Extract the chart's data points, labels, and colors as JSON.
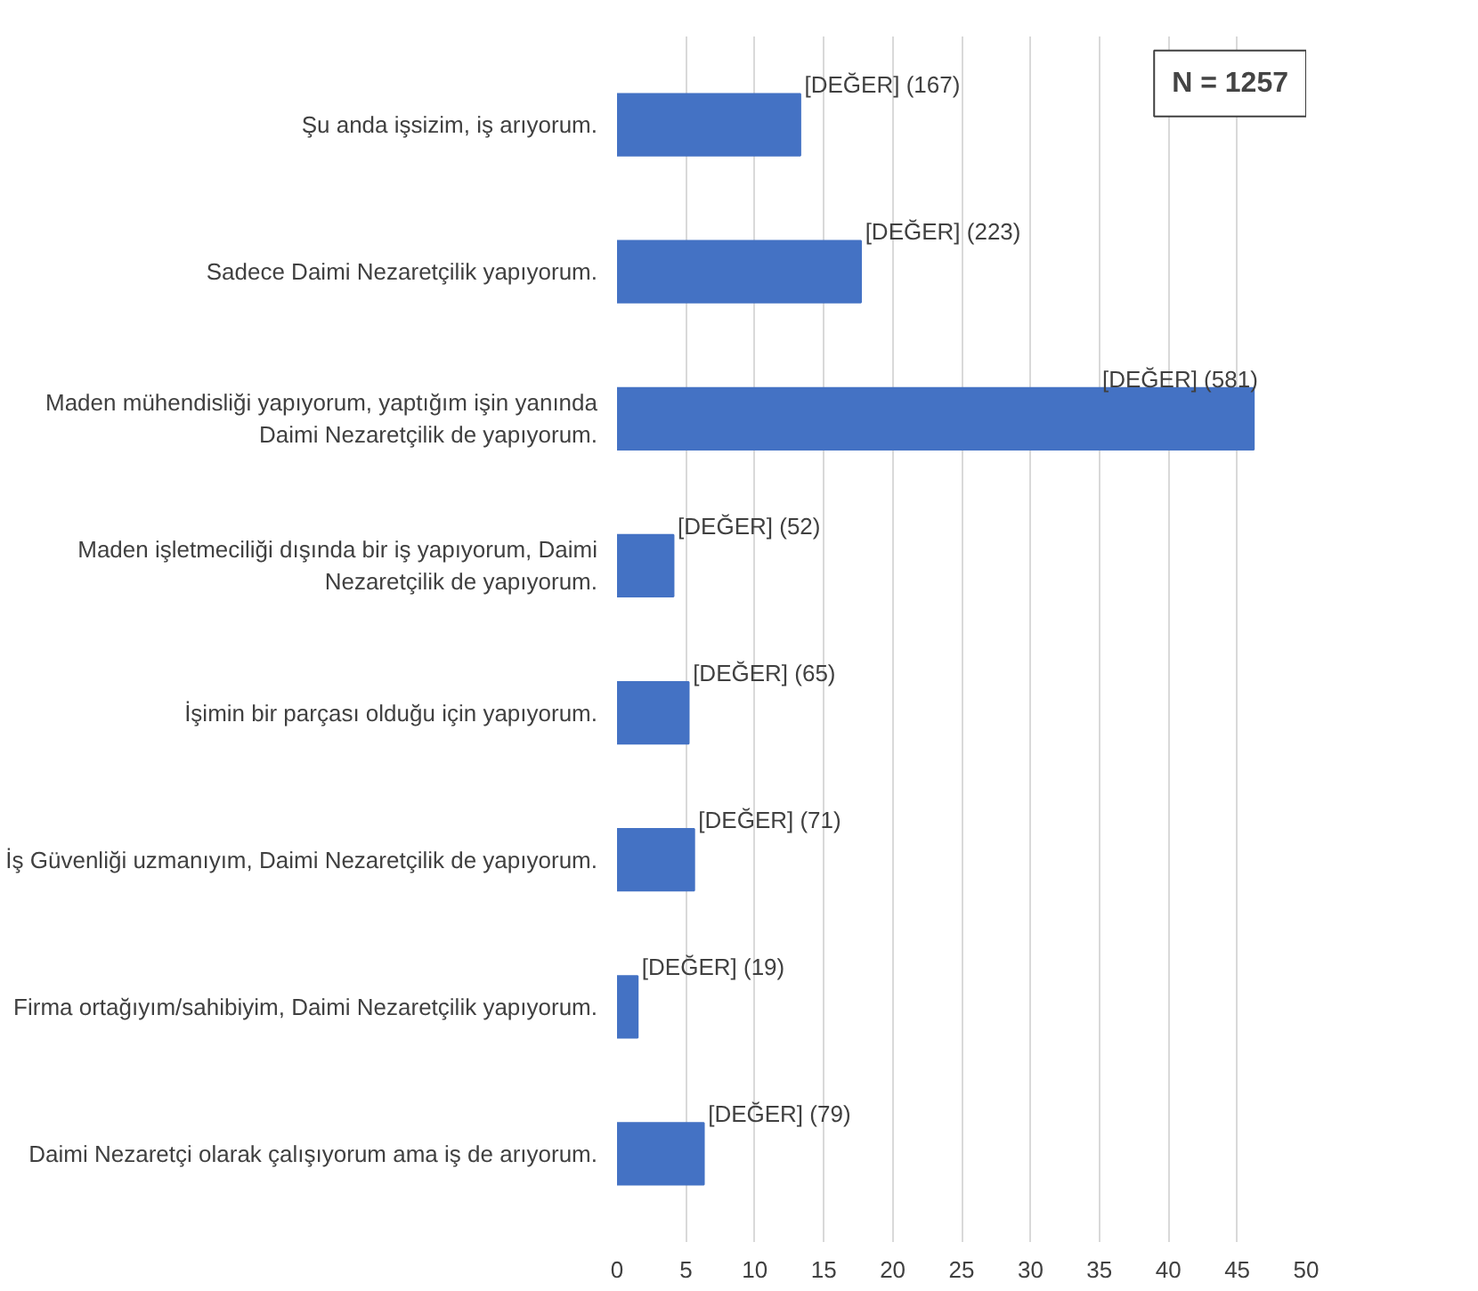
{
  "chart_data": {
    "type": "bar",
    "orientation": "horizontal",
    "categories": [
      "Şu anda işsizim, iş arıyorum.",
      "Sadece Daimi Nezaretçilik yapıyorum.",
      "Maden mühendisliği yapıyorum, yaptığım işin yanında\nDaimi Nezaretçilik de yapıyorum.",
      "Maden işletmeciliği dışında bir iş yapıyorum, Daimi\nNezaretçilik de yapıyorum.",
      "İşimin bir parçası olduğu için yapıyorum.",
      "İş Güvenliği uzmanıyım, Daimi Nezaretçilik de yapıyorum.",
      "Firma ortağıyım/sahibiyim, Daimi Nezaretçilik yapıyorum.",
      "Daimi Nezaretçi olarak çalışıyorum ama iş de arıyorum."
    ],
    "values": [
      13.3,
      17.7,
      46.2,
      4.1,
      5.2,
      5.6,
      1.5,
      6.3
    ],
    "color": "#4472c4",
    "xlim": [
      0,
      50
    ],
    "xticks": [
      0,
      5,
      10,
      15,
      20,
      25,
      30,
      35,
      40,
      45,
      50
    ],
    "grid": "x",
    "annotations": [
      "N = 1257",
      {
        "text": "[DEĞER] (167)",
        "x": 13.3,
        "y": "Şu anda işsizim, iş arıyorum."
      },
      {
        "text": "[DEĞER] (223)",
        "x": 17.7,
        "y": "Sadece Daimi Nezaretçilik yapıyorum."
      },
      {
        "text": "[DEĞER] (581)",
        "x": 46.2,
        "y": "Maden mühendisliği yapıyorum, yaptığım işin yanında\nDaimi Nezaretçilik de yapıyorum."
      },
      {
        "text": "[DEĞER] (52)",
        "x": 4.1,
        "y": "Maden işletmeciliği dışında bir iş yapıyorum, Daimi\nNezaretçilik de yapıyorum."
      },
      {
        "text": "[DEĞER] (65)",
        "x": 5.2,
        "y": "İşimin bir parçası olduğu için yapıyorum."
      },
      {
        "text": "[DEĞER] (71)",
        "x": 5.6,
        "y": "İş Güvenliği uzmanıyım, Daimi Nezaretçilik de yapıyorum."
      },
      {
        "text": "[DEĞER] (19)",
        "x": 1.5,
        "y": "Firma ortağıyım/sahibiyim, Daimi Nezaretçilik yapıyorum."
      },
      {
        "text": "[DEĞER] (79)",
        "x": 6.3,
        "y": "Daimi Nezaretçi olarak çalışıyorum ama iş de arıyorum."
      }
    ]
  }
}
